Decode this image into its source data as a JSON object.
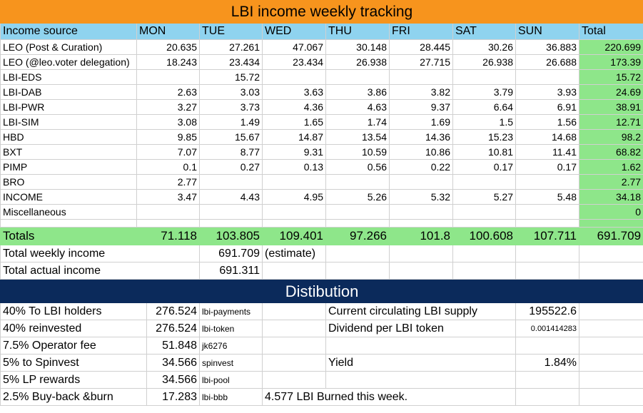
{
  "title": "LBI income weekly tracking",
  "headers": [
    "Income source",
    "MON",
    "TUE",
    "WED",
    "THU",
    "FRI",
    "SAT",
    "SUN",
    "Total"
  ],
  "rows": [
    {
      "label": "LEO (Post & Curation)",
      "values": [
        "20.635",
        "27.261",
        "47.067",
        "30.148",
        "28.445",
        "30.26",
        "36.883"
      ],
      "total": "220.699"
    },
    {
      "label": "LEO (@leo.voter delegation)",
      "values": [
        "18.243",
        "23.434",
        "23.434",
        "26.938",
        "27.715",
        "26.938",
        "26.688"
      ],
      "total": "173.39"
    },
    {
      "label": "LBI-EDS",
      "values": [
        "",
        "15.72",
        "",
        "",
        "",
        "",
        ""
      ],
      "total": "15.72"
    },
    {
      "label": "LBI-DAB",
      "values": [
        "2.63",
        "3.03",
        "3.63",
        "3.86",
        "3.82",
        "3.79",
        "3.93"
      ],
      "total": "24.69"
    },
    {
      "label": "LBI-PWR",
      "values": [
        "3.27",
        "3.73",
        "4.36",
        "4.63",
        "9.37",
        "6.64",
        "6.91"
      ],
      "total": "38.91"
    },
    {
      "label": "LBI-SIM",
      "values": [
        "3.08",
        "1.49",
        "1.65",
        "1.74",
        "1.69",
        "1.5",
        "1.56"
      ],
      "total": "12.71"
    },
    {
      "label": "HBD",
      "values": [
        "9.85",
        "15.67",
        "14.87",
        "13.54",
        "14.36",
        "15.23",
        "14.68"
      ],
      "total": "98.2"
    },
    {
      "label": "BXT",
      "values": [
        "7.07",
        "8.77",
        "9.31",
        "10.59",
        "10.86",
        "10.81",
        "11.41"
      ],
      "total": "68.82"
    },
    {
      "label": "PIMP",
      "values": [
        "0.1",
        "0.27",
        "0.13",
        "0.56",
        "0.22",
        "0.17",
        "0.17"
      ],
      "total": "1.62"
    },
    {
      "label": "BRO",
      "values": [
        "2.77",
        "",
        "",
        "",
        "",
        "",
        ""
      ],
      "total": "2.77"
    },
    {
      "label": "INCOME",
      "values": [
        "3.47",
        "4.43",
        "4.95",
        "5.26",
        "5.32",
        "5.27",
        "5.48"
      ],
      "total": "34.18"
    },
    {
      "label": "Miscellaneous",
      "values": [
        "",
        "",
        "",
        "",
        "",
        "",
        ""
      ],
      "total": "0"
    }
  ],
  "totals": {
    "label": "Totals",
    "values": [
      "71.118",
      "103.805",
      "109.401",
      "97.266",
      "101.8",
      "100.608",
      "107.711"
    ],
    "total": "691.709"
  },
  "weekly": {
    "label": "Total weekly income",
    "value": "691.709",
    "note": "(estimate)"
  },
  "actual": {
    "label": "Total actual income",
    "value": "691.311"
  },
  "distribution": {
    "title": "Distibution",
    "rows": [
      {
        "label": "40% To LBI holders",
        "amount": "276.524",
        "account": "lbi-payments",
        "info_label": "Current circulating LBI supply",
        "info_value": "195522.6"
      },
      {
        "label": "40% reinvested",
        "amount": "276.524",
        "account": "lbi-token",
        "info_label": "Dividend per LBI token",
        "info_value": "0.001414283"
      },
      {
        "label": "7.5% Operator fee",
        "amount": "51.848",
        "account": "jk6276",
        "info_label": "",
        "info_value": ""
      },
      {
        "label": "5% to Spinvest",
        "amount": "34.566",
        "account": "spinvest",
        "info_label": "Yield",
        "info_value": "1.84%"
      },
      {
        "label": "5% LP rewards",
        "amount": "34.566",
        "account": "lbi-pool",
        "info_label": "",
        "info_value": ""
      },
      {
        "label": "2.5% Buy-back &burn",
        "amount": "17.283",
        "account": "lbi-bbb",
        "info_label": "4.577 LBI Burned this week.",
        "info_value": ""
      }
    ]
  },
  "colors": {
    "title_bg": "#f7941d",
    "header_bg": "#8fd3ef",
    "total_bg": "#8ee68a",
    "dist_title_bg": "#0b2a5b"
  }
}
